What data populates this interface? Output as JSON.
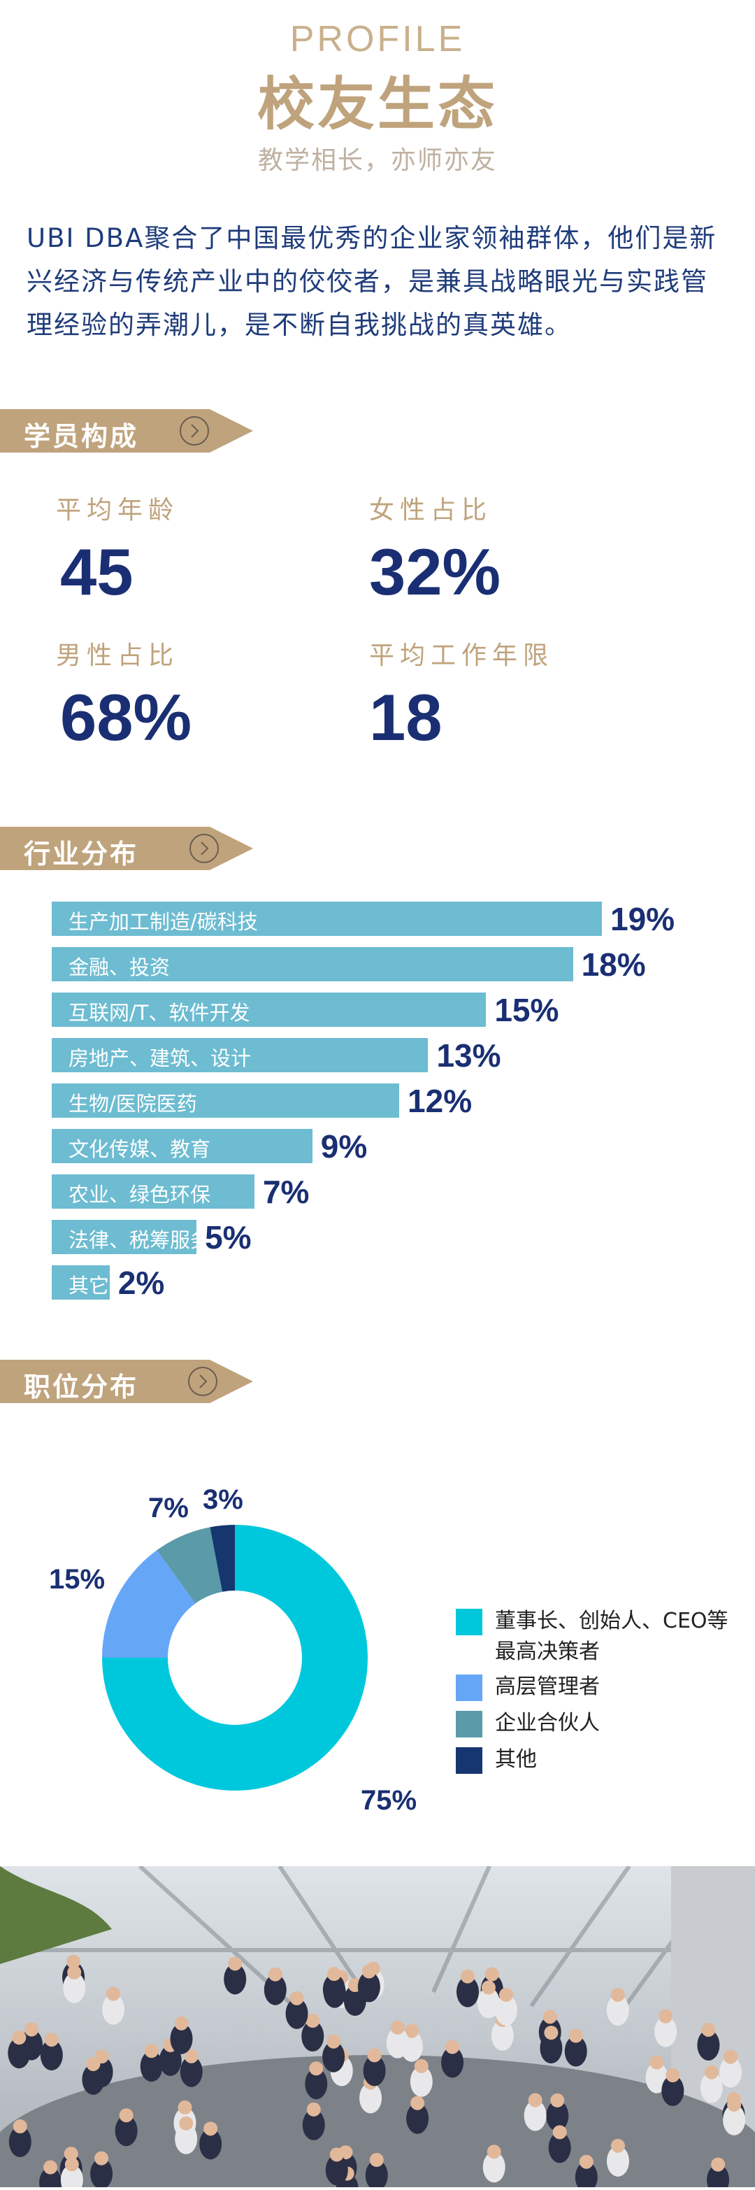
{
  "header": {
    "eyebrow": "PROFILE",
    "title": "校友生态",
    "subtitle": "教学相长，亦师亦友"
  },
  "intro": "UBI DBA聚合了中国最优秀的企业家领袖群体，他们是新兴经济与传统产业中的佼佼者，是兼具战略眼光与实践管理经验的弄潮儿，是不断自我挑战的真英雄。",
  "colors": {
    "gold": "#bfa37c",
    "navy": "#1a2f73",
    "bar": "#6dbcd1"
  },
  "sections": {
    "students": {
      "title": "学员构成",
      "icon": "chevron-right-circle-icon",
      "stats": [
        {
          "label": "平均年龄",
          "value": "45"
        },
        {
          "label": "女性占比",
          "value": "32%"
        },
        {
          "label": "男性占比",
          "value": "68%"
        },
        {
          "label": "平均工作年限",
          "value": "18"
        }
      ]
    },
    "industry": {
      "title": "行业分布",
      "icon": "chevron-right-circle-icon"
    },
    "position": {
      "title": "职位分布",
      "icon": "chevron-right-circle-icon"
    }
  },
  "chart_data": [
    {
      "type": "bar",
      "orientation": "horizontal",
      "categories": [
        "生产加工制造/碳科技",
        "金融、投资",
        "互联网/T、软件开发",
        "房地产、建筑、设计",
        "生物/医院医药",
        "文化传媒、教育",
        "农业、绿色环保",
        "法律、税筹服务",
        "其它"
      ],
      "values": [
        19,
        18,
        15,
        13,
        12,
        9,
        7,
        5,
        2
      ],
      "value_labels": [
        "19%",
        "18%",
        "15%",
        "13%",
        "12%",
        "9%",
        "7%",
        "5%",
        "2%"
      ],
      "color": "#6dbcd1"
    },
    {
      "type": "pie",
      "donut": true,
      "legend": "right",
      "series": [
        {
          "name": "董事长、创始人、CEO等最高决策者",
          "value": 75,
          "label": "75%",
          "color": "#00c8dc"
        },
        {
          "name": "高层管理者",
          "value": 15,
          "label": "15%",
          "color": "#66a6f7"
        },
        {
          "name": "企业合伙人",
          "value": 7,
          "label": "7%",
          "color": "#5a9aa9"
        },
        {
          "name": "其他",
          "value": 3,
          "label": "3%",
          "color": "#163670"
        }
      ]
    }
  ]
}
